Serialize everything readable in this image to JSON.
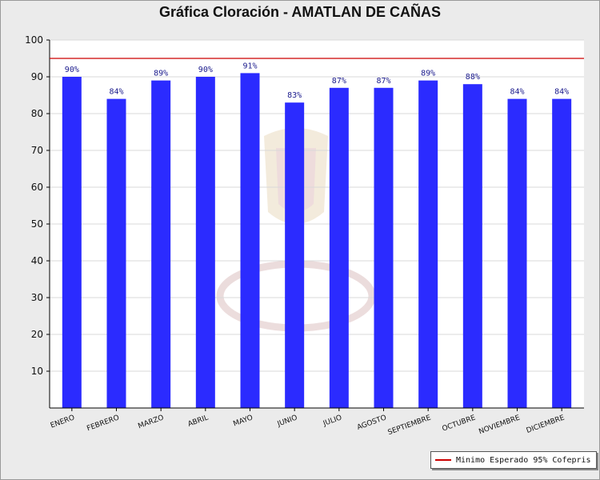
{
  "title": "Gráfica Cloración - AMATLAN DE CAÑAS",
  "colors": {
    "bar": "#2b2bff",
    "threshold": "#cc0000",
    "label": "#1a1a8c"
  },
  "legend": {
    "label": "Minimo Esperado 95% Cofepris"
  },
  "chart_data": {
    "type": "bar",
    "title": "Gráfica Cloración - AMATLAN DE CAÑAS",
    "xlabel": "",
    "ylabel": "",
    "ylim": [
      0,
      100
    ],
    "yticks": [
      10,
      20,
      30,
      40,
      50,
      60,
      70,
      80,
      90,
      100
    ],
    "grid": true,
    "legend_position": "bottom-right",
    "categories": [
      "ENERO",
      "FEBRERO",
      "MARZO",
      "ABRIL",
      "MAYO",
      "JUNIO",
      "JULIO",
      "AGOSTO",
      "SEPTIEMBRE",
      "OCTUBRE",
      "NOVIEMBRE",
      "DICIEMBRE"
    ],
    "values": [
      90,
      84,
      89,
      90,
      91,
      83,
      87,
      87,
      89,
      88,
      84,
      84
    ],
    "data_labels": [
      "90%",
      "84%",
      "89%",
      "90%",
      "91%",
      "83%",
      "87%",
      "87%",
      "89%",
      "88%",
      "84%",
      "84%"
    ],
    "threshold": {
      "name": "Minimo Esperado 95% Cofepris",
      "value": 95
    }
  }
}
